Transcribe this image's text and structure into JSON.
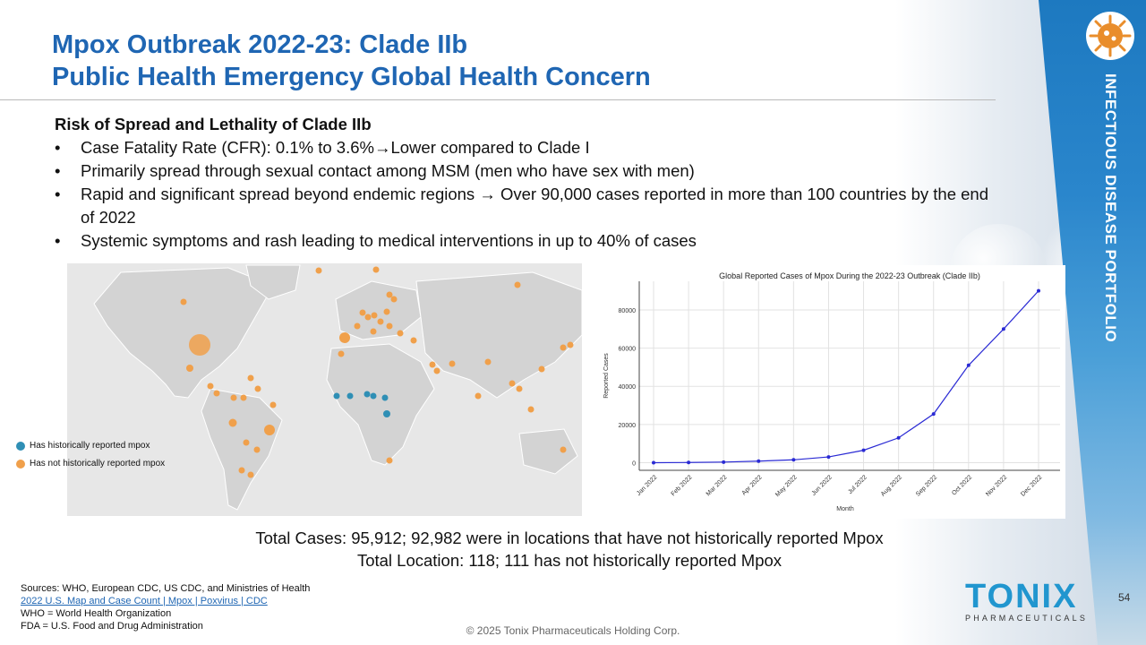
{
  "slide": {
    "title_line1": "Mpox Outbreak 2022-23: Clade IIb",
    "title_line2": "Public Health Emergency Global Health Concern",
    "section_label": "INFECTIOUS DISEASE PORTFOLIO",
    "page_number": "54",
    "footer": "© 2025 Tonix Pharmaceuticals Holding Corp."
  },
  "content": {
    "heading": "Risk of Spread and Lethality of Clade IIb",
    "bullets": [
      "Case Fatality Rate (CFR): 0.1% to 3.6%→Lower compared to Clade I",
      "Primarily spread through sexual contact among MSM (men who have sex with men)",
      "Rapid and significant spread beyond endemic regions → Over 90,000 cases reported in more than 100 countries by the end of 2022",
      "Systemic symptoms and rash leading to medical interventions in up to 40% of cases"
    ]
  },
  "map": {
    "legend": [
      {
        "label": "Has historically reported mpox",
        "color": "#2f8fb5"
      },
      {
        "label": "Has not historically reported mpox",
        "color": "#f0a04b"
      }
    ]
  },
  "totals": {
    "line1": "Total Cases: 95,912; 92,982 were in locations that have not historically reported Mpox",
    "line2": "Total Location: 118; 111 has not historically reported Mpox"
  },
  "sources": {
    "line1": "Sources: WHO, European CDC, US CDC, and Ministries of Health",
    "link": "2022 U.S. Map and Case Count | Mpox | Poxvirus | CDC",
    "line3": "WHO = World Health Organization",
    "line4": "FDA = U.S. Food and Drug Administration"
  },
  "logo": {
    "word": "TONIX",
    "sub": "PHARMACEUTICALS"
  },
  "chart_data": {
    "type": "line",
    "title": "Global Reported Cases of Mpox During the 2022-23 Outbreak (Clade IIb)",
    "xlabel": "Month",
    "ylabel": "Reported Cases",
    "categories": [
      "Jan 2022",
      "Feb 2022",
      "Mar 2022",
      "Apr 2022",
      "May 2022",
      "Jun 2022",
      "Jul 2022",
      "Aug 2022",
      "Sep 2022",
      "Oct 2022",
      "Nov 2022",
      "Dec 2022"
    ],
    "values": [
      0,
      100,
      300,
      800,
      1500,
      3000,
      6500,
      13000,
      25500,
      51000,
      70000,
      90000
    ],
    "yticks": [
      0,
      20000,
      40000,
      60000,
      80000
    ],
    "ylim": [
      -4000,
      95000
    ],
    "grid": true,
    "color": "#2a2ad4"
  }
}
